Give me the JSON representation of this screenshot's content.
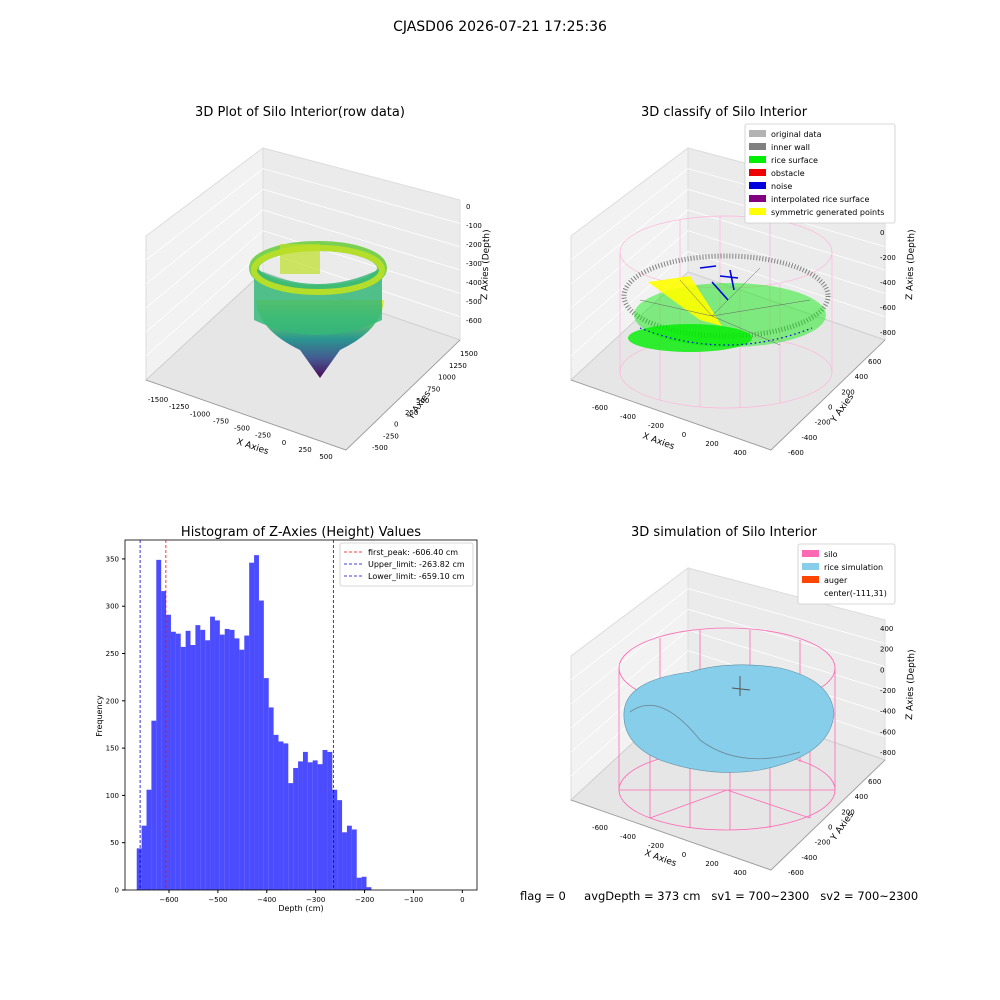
{
  "suptitle": "CJASD06 2026-07-21 17:25:36",
  "panels": {
    "raw": {
      "title": "3D Plot of Silo Interior(row data)",
      "xlabel": "X Axies",
      "ylabel": "Y Axies",
      "zlabel": "Z Axies (Depth)",
      "xticks": [
        "-1500",
        "-1250",
        "-1000",
        "-750",
        "-500",
        "-250",
        "0",
        "250",
        "500"
      ],
      "yticks": [
        "-500",
        "-250",
        "0",
        "250",
        "500",
        "750",
        "1000",
        "1250",
        "1500"
      ],
      "zticks": [
        "0",
        "-100",
        "-200",
        "-300",
        "-400",
        "-500",
        "-600"
      ]
    },
    "classify": {
      "title": "3D classify of Silo Interior",
      "xlabel": "X Axies",
      "ylabel": "Y Axies",
      "zlabel": "Z Axies (Depth)",
      "xticks": [
        "-600",
        "-400",
        "-200",
        "0",
        "200",
        "400"
      ],
      "yticks": [
        "-600",
        "-400",
        "-200",
        "0",
        "200",
        "400",
        "600"
      ],
      "zticks": [
        "200",
        "0",
        "-200",
        "-400",
        "-600",
        "-800"
      ],
      "legend": [
        {
          "label": "original data",
          "color": "#b3b3b3"
        },
        {
          "label": "inner wall",
          "color": "#808080"
        },
        {
          "label": "rice surface",
          "color": "#00ee00"
        },
        {
          "label": "obstacle",
          "color": "#ee0000"
        },
        {
          "label": "noise",
          "color": "#0000dd"
        },
        {
          "label": "interpolated rice surface",
          "color": "#800080"
        },
        {
          "label": "symmetric generated points",
          "color": "#ffff00"
        }
      ]
    },
    "simulation": {
      "title": "3D simulation of Silo Interior",
      "xlabel": "X Axies",
      "ylabel": "Y Axies",
      "zlabel": "Z Axies (Depth)",
      "xticks": [
        "-600",
        "-400",
        "-200",
        "0",
        "200",
        "400"
      ],
      "yticks": [
        "-600",
        "-400",
        "-200",
        "0",
        "200",
        "400",
        "600"
      ],
      "zticks": [
        "400",
        "200",
        "0",
        "-200",
        "-400",
        "-600",
        "-800"
      ],
      "legend": [
        {
          "label": "silo",
          "color": "#ff69b4"
        },
        {
          "label": "rice simulation",
          "color": "#87ceeb"
        },
        {
          "label": "auger",
          "color": "#ff4500"
        },
        {
          "label": "center(-111,31)",
          "color": ""
        }
      ]
    }
  },
  "chart_data": {
    "type": "bar",
    "title": "Histogram of Z-Axies (Height) Values",
    "xlabel": "Depth (cm)",
    "ylabel": "Frequency",
    "xlim": [
      -690,
      30
    ],
    "ylim": [
      0,
      370
    ],
    "xticks": [
      -600,
      -500,
      -400,
      -300,
      -200,
      -100,
      0
    ],
    "yticks": [
      0,
      50,
      100,
      150,
      200,
      250,
      300,
      350
    ],
    "bar_color": "#0000ff",
    "bin_start": -666,
    "bin_width": 10,
    "values": [
      44,
      68,
      106,
      179,
      349,
      316,
      291,
      273,
      271,
      257,
      274,
      259,
      280,
      275,
      264,
      289,
      285,
      270,
      276,
      275,
      266,
      254,
      269,
      346,
      354,
      306,
      224,
      193,
      164,
      157,
      155,
      113,
      129,
      136,
      146,
      135,
      137,
      133,
      148,
      146,
      106,
      95,
      61,
      68,
      64,
      13,
      14,
      3
    ],
    "vlines": [
      {
        "label": "first_peak: -606.40 cm",
        "x": -606.4,
        "color": "#ff0000"
      },
      {
        "label": "Upper_limit: -263.82 cm",
        "x": -263.82,
        "color": "#0000cc"
      },
      {
        "label": "Lower_limit: -659.10 cm",
        "x": -659.1,
        "color": "#0000cc"
      }
    ]
  },
  "footer": {
    "flag": "flag = 0",
    "avg_depth": "avgDepth = 373 cm",
    "sv1": "sv1 = 700~2300",
    "sv2": "sv2 = 700~2300"
  }
}
